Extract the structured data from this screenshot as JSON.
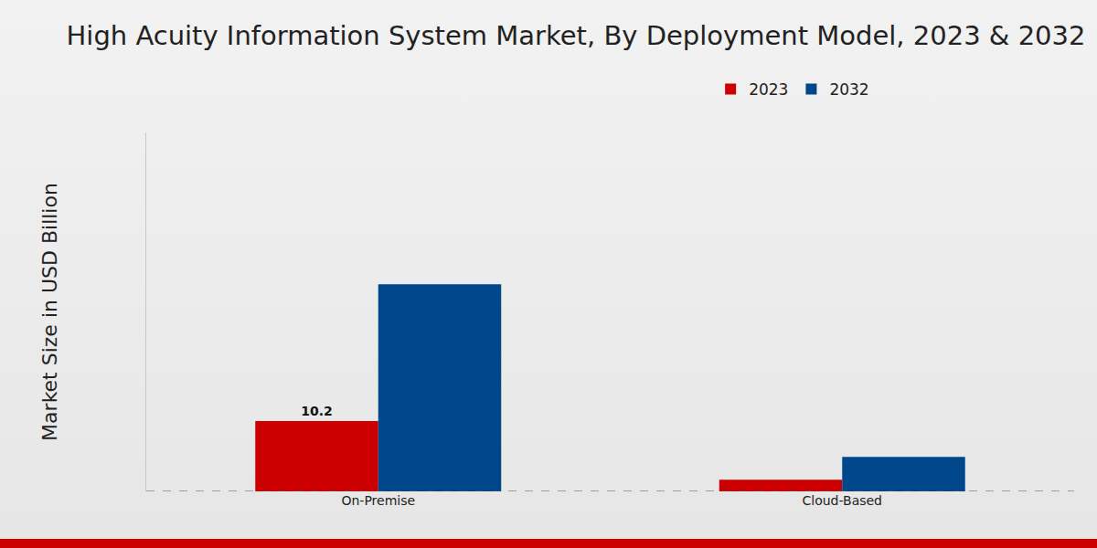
{
  "chart_data": {
    "type": "bar",
    "title": "High Acuity Information System Market, By Deployment Model, 2023 & 2032",
    "y_label": "Market Size in USD Billion",
    "categories": [
      "On-Premise",
      "Cloud-Based"
    ],
    "series": [
      {
        "name": "2023",
        "color": "#cc0000",
        "values": [
          10.2,
          1.7
        ],
        "value_labels": [
          "10.2",
          null
        ]
      },
      {
        "name": "2032",
        "color": "#00468b",
        "values": [
          30.0,
          5.0
        ]
      }
    ],
    "ylim": [
      0,
      52
    ],
    "yticks": [],
    "tick_labels": "x",
    "grid": false,
    "legend": "top"
  }
}
